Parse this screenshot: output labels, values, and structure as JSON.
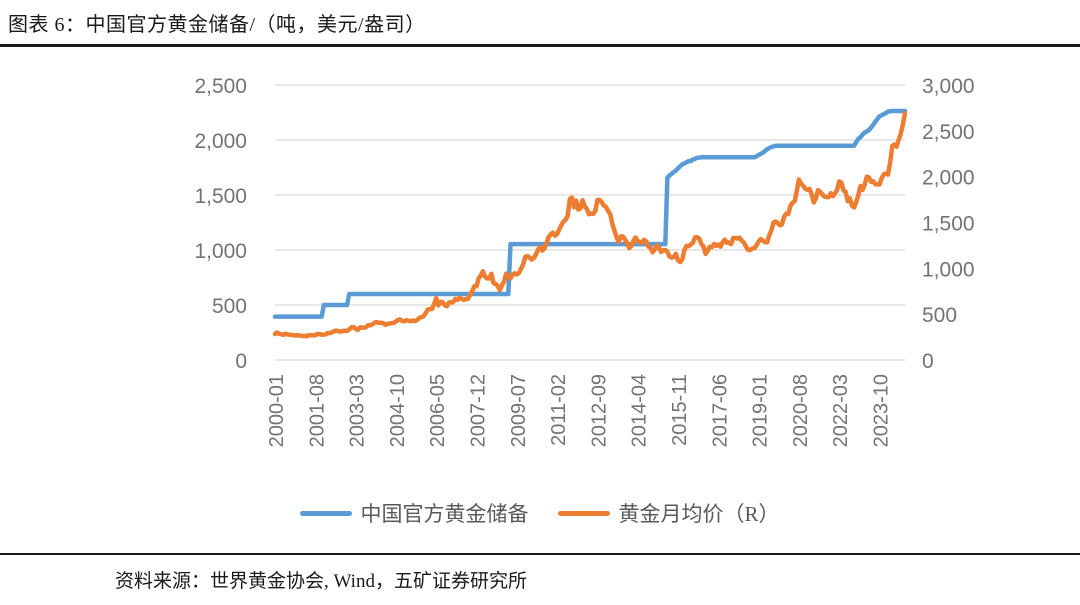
{
  "header": {
    "title": "图表 6：中国官方黄金储备/（吨，美元/盎司）"
  },
  "footer": {
    "source": "资料来源：世界黄金协会, Wind，五矿证券研究所"
  },
  "colors": {
    "series_blue": "#5B9BD5",
    "series_orange": "#ED7D31",
    "gridline": "#D9D9D9",
    "axis_label": "#737373",
    "legend_text": "#595959",
    "divider": "#1a1a1a"
  },
  "chart_data": {
    "type": "line",
    "title": "中国官方黄金储备/（吨，美元/盎司）",
    "x_start": "2000-01",
    "x_end": "2024-10",
    "x_frequency": "monthly",
    "x_tick_month_step": 19,
    "x_tick_labels": [
      "2000-01",
      "2001-08",
      "2003-03",
      "2004-10",
      "2006-05",
      "2007-12",
      "2009-07",
      "2011-02",
      "2012-09",
      "2014-04",
      "2015-11",
      "2017-06",
      "2019-01",
      "2020-08",
      "2022-03",
      "2023-10"
    ],
    "grid": "horizontal",
    "legend_position": "bottom",
    "left_axis": {
      "min": 0,
      "max": 2500,
      "tick_values": [
        2500,
        2000,
        1500,
        1000,
        500,
        0
      ],
      "tick_labels": [
        "2,500",
        "2,000",
        "1,500",
        "1,000",
        "500",
        "0"
      ],
      "unit": "吨"
    },
    "right_axis": {
      "min": 0,
      "max": 3000,
      "tick_values": [
        3000,
        2500,
        2000,
        1500,
        1000,
        500,
        0
      ],
      "tick_labels": [
        "3,000",
        "2,500",
        "2,000",
        "1,500",
        "1,000",
        "500",
        "0"
      ],
      "unit": "美元/盎司"
    },
    "series": [
      {
        "name": "中国官方黄金储备",
        "axis": "left",
        "color": "#5B9BD5",
        "values": [
          395,
          395,
          395,
          395,
          395,
          395,
          395,
          395,
          395,
          395,
          395,
          395,
          395,
          395,
          395,
          395,
          395,
          395,
          395,
          395,
          395,
          395,
          395,
          500,
          500,
          500,
          500,
          500,
          500,
          500,
          500,
          500,
          500,
          500,
          500,
          600,
          600,
          600,
          600,
          600,
          600,
          600,
          600,
          600,
          600,
          600,
          600,
          600,
          600,
          600,
          600,
          600,
          600,
          600,
          600,
          600,
          600,
          600,
          600,
          600,
          600,
          600,
          600,
          600,
          600,
          600,
          600,
          600,
          600,
          600,
          600,
          600,
          600,
          600,
          600,
          600,
          600,
          600,
          600,
          600,
          600,
          600,
          600,
          600,
          600,
          600,
          600,
          600,
          600,
          600,
          600,
          600,
          600,
          600,
          600,
          600,
          600,
          600,
          600,
          600,
          600,
          600,
          600,
          600,
          600,
          600,
          600,
          600,
          600,
          600,
          600,
          1054,
          1054,
          1054,
          1054,
          1054,
          1054,
          1054,
          1054,
          1054,
          1054,
          1054,
          1054,
          1054,
          1054,
          1054,
          1054,
          1054,
          1054,
          1054,
          1054,
          1054,
          1054,
          1054,
          1054,
          1054,
          1054,
          1054,
          1054,
          1054,
          1054,
          1054,
          1054,
          1054,
          1054,
          1054,
          1054,
          1054,
          1054,
          1054,
          1054,
          1054,
          1054,
          1054,
          1054,
          1054,
          1054,
          1054,
          1054,
          1054,
          1054,
          1054,
          1054,
          1054,
          1054,
          1054,
          1054,
          1054,
          1054,
          1054,
          1054,
          1054,
          1054,
          1054,
          1054,
          1054,
          1054,
          1054,
          1054,
          1054,
          1054,
          1054,
          1054,
          1054,
          1054,
          1658,
          1677,
          1694,
          1709,
          1722,
          1743,
          1762,
          1778,
          1788,
          1797,
          1808,
          1808,
          1823,
          1828,
          1838,
          1839,
          1843,
          1843,
          1843,
          1843,
          1843,
          1843,
          1843,
          1843,
          1843,
          1843,
          1843,
          1843,
          1843,
          1843,
          1843,
          1843,
          1843,
          1843,
          1843,
          1843,
          1843,
          1843,
          1843,
          1843,
          1843,
          1843,
          1852,
          1864,
          1874,
          1885,
          1900,
          1916,
          1926,
          1936,
          1942,
          1948,
          1948,
          1948,
          1948,
          1948,
          1948,
          1948,
          1948,
          1948,
          1948,
          1948,
          1948,
          1948,
          1948,
          1948,
          1948,
          1948,
          1948,
          1948,
          1948,
          1948,
          1948,
          1948,
          1948,
          1948,
          1948,
          1948,
          1948,
          1948,
          1948,
          1948,
          1948,
          1948,
          1948,
          1948,
          1948,
          1948,
          1948,
          1980,
          2011,
          2025,
          2050,
          2068,
          2076,
          2092,
          2113,
          2137,
          2165,
          2192,
          2215,
          2226,
          2235,
          2245,
          2257,
          2262,
          2264,
          2264,
          2264,
          2264,
          2264,
          2264,
          2264
        ]
      },
      {
        "name": "黄金月均价（R）",
        "axis": "right",
        "color": "#ED7D31",
        "values": [
          284,
          300,
          286,
          280,
          275,
          286,
          281,
          274,
          274,
          270,
          266,
          272,
          265,
          262,
          263,
          260,
          272,
          270,
          268,
          272,
          284,
          283,
          276,
          276,
          281,
          295,
          294,
          303,
          314,
          321,
          313,
          310,
          319,
          317,
          319,
          333,
          357,
          359,
          341,
          328,
          355,
          356,
          351,
          360,
          379,
          379,
          389,
          407,
          414,
          405,
          407,
          403,
          384,
          392,
          398,
          401,
          405,
          421,
          439,
          442,
          424,
          423,
          434,
          429,
          422,
          431,
          424,
          437,
          456,
          470,
          476,
          510,
          550,
          555,
          557,
          611,
          675,
          596,
          634,
          632,
          598,
          586,
          627,
          630,
          631,
          665,
          655,
          680,
          667,
          655,
          665,
          665,
          713,
          755,
          806,
          804,
          890,
          922,
          968,
          910,
          889,
          889,
          940,
          839,
          830,
          807,
          761,
          816,
          859,
          943,
          924,
          890,
          929,
          946,
          934,
          949,
          997,
          1043,
          1127,
          1135,
          1118,
          1095,
          1113,
          1149,
          1205,
          1233,
          1193,
          1216,
          1271,
          1342,
          1370,
          1391,
          1356,
          1373,
          1424,
          1474,
          1510,
          1529,
          1573,
          1756,
          1772,
          1666,
          1739,
          1641,
          1656,
          1743,
          1674,
          1650,
          1591,
          1598,
          1594,
          1626,
          1745,
          1747,
          1722,
          1685,
          1671,
          1628,
          1593,
          1485,
          1414,
          1342,
          1287,
          1347,
          1348,
          1316,
          1276,
          1221,
          1244,
          1301,
          1336,
          1298,
          1288,
          1279,
          1311,
          1295,
          1237,
          1222,
          1176,
          1202,
          1251,
          1227,
          1178,
          1198,
          1199,
          1181,
          1128,
          1117,
          1124,
          1159,
          1086,
          1068,
          1097,
          1200,
          1246,
          1242,
          1261,
          1276,
          1337,
          1340,
          1327,
          1266,
          1238,
          1157,
          1192,
          1235,
          1231,
          1266,
          1246,
          1260,
          1236,
          1283,
          1314,
          1280,
          1282,
          1264,
          1331,
          1331,
          1325,
          1334,
          1303,
          1282,
          1238,
          1202,
          1198,
          1215,
          1221,
          1250,
          1291,
          1320,
          1301,
          1286,
          1284,
          1359,
          1413,
          1499,
          1511,
          1495,
          1471,
          1479,
          1561,
          1597,
          1592,
          1683,
          1716,
          1732,
          1843,
          1969,
          1922,
          1900,
          1866,
          1856,
          1867,
          1808,
          1718,
          1762,
          1853,
          1835,
          1807,
          1784,
          1777,
          1777,
          1820,
          1787,
          1817,
          1856,
          1948,
          1934,
          1848,
          1836,
          1732,
          1765,
          1681,
          1664,
          1725,
          1797,
          1898,
          1856,
          1913,
          2000,
          1992,
          1943,
          1951,
          1918,
          1916,
          1915,
          1984,
          2026,
          2034,
          2023,
          2160,
          2336,
          2351,
          2327,
          2398,
          2470,
          2570,
          2690
        ]
      }
    ]
  }
}
